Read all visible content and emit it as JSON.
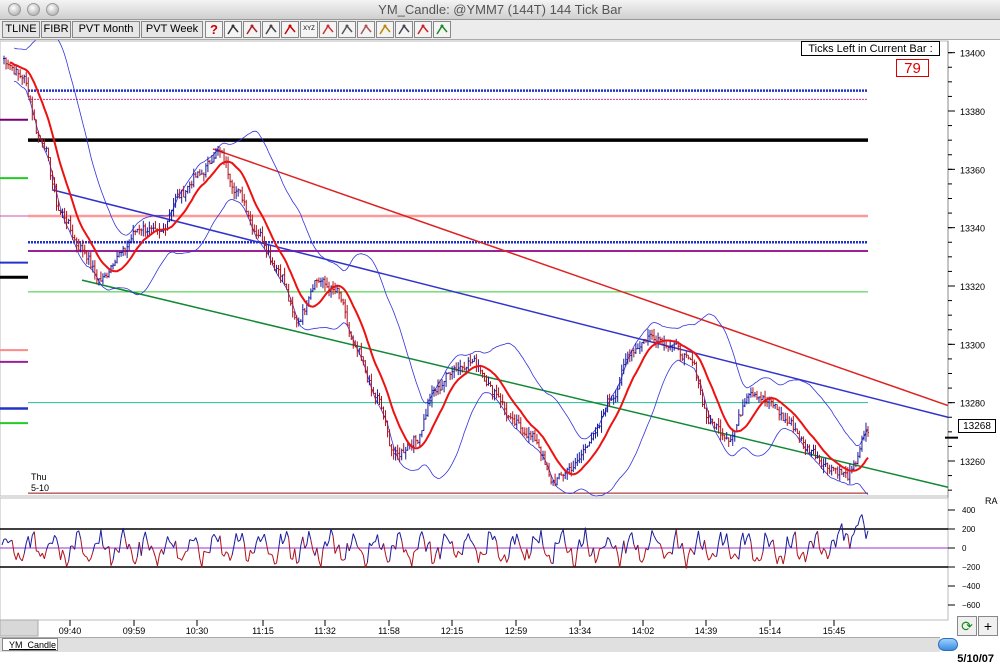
{
  "window": {
    "title": "YM_Candle: @YMM7 (144T) 144 Tick Bar"
  },
  "toolbar": {
    "buttons": [
      "TLINE",
      "FIBR",
      "PVT Month",
      "PVT Week"
    ],
    "icons": [
      "help-icon",
      "crosshair-icon",
      "trendline-icon",
      "drawing-tool-icon",
      "close-x-icon",
      "xyz-icon",
      "bar-chart-icon",
      "angle-icon",
      "person-icon",
      "bell-icon",
      "grid-icon",
      "line-chart-icon",
      "studies-icon"
    ],
    "help_glyph": "?",
    "xyz_glyph": "XYZ"
  },
  "ticks_left": {
    "label": "Ticks Left in Current Bar :",
    "value": "79"
  },
  "last_price_tag": "13268",
  "day_label": {
    "day": "Thu",
    "date": "5-10"
  },
  "sub_panel_label": "RA",
  "tab_label": "YM_Candle",
  "footer_date": "5/10/07",
  "corner_buttons": {
    "refresh": "⟳",
    "add": "+"
  },
  "colors": {
    "up_bar": "#1a1a9c",
    "down_bar": "#b0101a",
    "ma_red": "#ee1111",
    "band_blue": "#3333dd",
    "channel_red": "#dd2222",
    "channel_blue": "#3333cc",
    "channel_green": "#118833",
    "grid": "#c8c8c8"
  },
  "chart_data": {
    "type": "candlestick",
    "price_axis": {
      "ticks": [
        13400,
        13380,
        13360,
        13340,
        13320,
        13300,
        13280,
        13260
      ],
      "range": [
        13248,
        13404
      ]
    },
    "time_axis": {
      "ticks": [
        "09:40",
        "09:59",
        "10:30",
        "11:15",
        "11:32",
        "11:58",
        "12:15",
        "12:59",
        "13:34",
        "14:02",
        "14:39",
        "15:14",
        "15:45"
      ]
    },
    "last_price": 13268,
    "close_path": [
      13398,
      13392,
      13370,
      13345,
      13333,
      13322,
      13331,
      13340,
      13338,
      13351,
      13358,
      13366,
      13352,
      13338,
      13326,
      13308,
      13322,
      13318,
      13298,
      13282,
      13262,
      13267,
      13284,
      13292,
      13294,
      13284,
      13273,
      13268,
      13253,
      13258,
      13268,
      13282,
      13298,
      13303,
      13300,
      13294,
      13273,
      13268,
      13284,
      13280,
      13273,
      13264,
      13258,
      13255,
      13270
    ],
    "oscillator": {
      "ticks": [
        400,
        200,
        0,
        -200,
        -400,
        -600
      ],
      "levels": [
        200,
        0,
        -200
      ]
    }
  }
}
